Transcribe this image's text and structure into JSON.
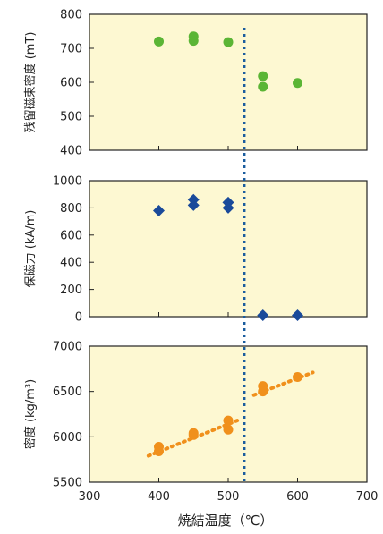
{
  "chart_data": {
    "type": "scatter",
    "xlabel": "焼結温度（℃）",
    "x_ticks": [
      "300",
      "400",
      "500",
      "600",
      "700"
    ],
    "xlim": [
      300,
      700
    ],
    "plot_background": "#fdf8d2",
    "divider": {
      "x": 523,
      "color": "#1a5c9e",
      "style": "dotted"
    },
    "panels": [
      {
        "id": "remanence",
        "ylabel": "残留磁束密度 (mT)",
        "ylim": [
          400,
          800
        ],
        "y_ticks": [
          "400",
          "500",
          "600",
          "700",
          "800"
        ],
        "marker": "circle",
        "color": "#5bb535",
        "points": [
          {
            "x": 400,
            "y": 720
          },
          {
            "x": 450,
            "y": 735
          },
          {
            "x": 450,
            "y": 722
          },
          {
            "x": 500,
            "y": 718
          },
          {
            "x": 550,
            "y": 618
          },
          {
            "x": 550,
            "y": 587
          },
          {
            "x": 600,
            "y": 598
          }
        ]
      },
      {
        "id": "coercivity",
        "ylabel": "保磁力 (kA/m)",
        "ylim": [
          0,
          1000
        ],
        "y_ticks": [
          "0",
          "200",
          "400",
          "600",
          "800",
          "1000"
        ],
        "marker": "diamond",
        "color": "#1a4a9a",
        "points": [
          {
            "x": 400,
            "y": 780
          },
          {
            "x": 450,
            "y": 860
          },
          {
            "x": 450,
            "y": 820
          },
          {
            "x": 500,
            "y": 840
          },
          {
            "x": 500,
            "y": 800
          },
          {
            "x": 550,
            "y": 10
          },
          {
            "x": 600,
            "y": 10
          }
        ]
      },
      {
        "id": "density",
        "ylabel": "密度 (kg/m³)",
        "ylim": [
          5500,
          7000
        ],
        "y_ticks": [
          "5500",
          "6000",
          "6500",
          "7000"
        ],
        "marker": "circle",
        "color": "#f0901c",
        "points": [
          {
            "x": 400,
            "y": 5890
          },
          {
            "x": 400,
            "y": 5840
          },
          {
            "x": 450,
            "y": 6040
          },
          {
            "x": 450,
            "y": 6020
          },
          {
            "x": 500,
            "y": 6180
          },
          {
            "x": 500,
            "y": 6080
          },
          {
            "x": 550,
            "y": 6560
          },
          {
            "x": 550,
            "y": 6500
          },
          {
            "x": 600,
            "y": 6660
          }
        ],
        "trendlines": [
          {
            "x1": 385,
            "y1": 5790,
            "x2": 513,
            "y2": 6180
          },
          {
            "x1": 537,
            "y1": 6460,
            "x2": 622,
            "y2": 6710
          }
        ]
      }
    ]
  }
}
